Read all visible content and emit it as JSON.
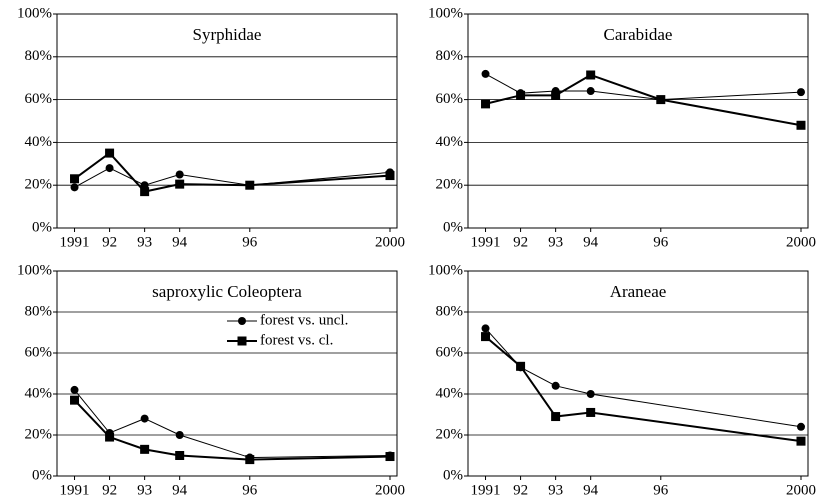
{
  "chart_data": [
    {
      "type": "line",
      "title": "Syrphidae",
      "xlim": [
        1990.5,
        2000.2
      ],
      "xticks": [
        1991,
        {
          "value": 1992,
          "label": "92"
        },
        {
          "value": 1993,
          "label": "93"
        },
        {
          "value": 1994,
          "label": "94"
        },
        {
          "value": 1996,
          "label": "96"
        },
        2000
      ],
      "ylim": [
        0,
        100
      ],
      "yticks": [
        {
          "value": 0,
          "label": "0%"
        },
        {
          "value": 20,
          "label": "20%"
        },
        {
          "value": 40,
          "label": "40%"
        },
        {
          "value": 60,
          "label": "60%"
        },
        {
          "value": 80,
          "label": "80%"
        },
        {
          "value": 100,
          "label": "100%"
        }
      ],
      "grid": true,
      "series": [
        {
          "color": "#000000",
          "marker": "circle",
          "line_width": 1,
          "x": [
            1991,
            1992,
            1993,
            1994,
            1996,
            2000
          ],
          "values": [
            19,
            28,
            20,
            25,
            20,
            26
          ]
        },
        {
          "color": "#000000",
          "marker": "square",
          "line_width": 2,
          "x": [
            1991,
            1992,
            1993,
            1994,
            1996,
            2000
          ],
          "values": [
            23,
            35,
            17,
            20.5,
            20,
            24.5
          ]
        }
      ]
    },
    {
      "type": "line",
      "title": "Carabidae",
      "xlim": [
        1990.5,
        2000.2
      ],
      "xticks": [
        1991,
        {
          "value": 1992,
          "label": "92"
        },
        {
          "value": 1993,
          "label": "93"
        },
        {
          "value": 1994,
          "label": "94"
        },
        {
          "value": 1996,
          "label": "96"
        },
        2000
      ],
      "ylim": [
        0,
        100
      ],
      "yticks": [
        {
          "value": 0,
          "label": "0%"
        },
        {
          "value": 20,
          "label": "20%"
        },
        {
          "value": 40,
          "label": "40%"
        },
        {
          "value": 60,
          "label": "60%"
        },
        {
          "value": 80,
          "label": "80%"
        },
        {
          "value": 100,
          "label": "100%"
        }
      ],
      "grid": true,
      "series": [
        {
          "color": "#000000",
          "marker": "circle",
          "line_width": 1,
          "x": [
            1991,
            1992,
            1993,
            1994,
            1996,
            2000
          ],
          "values": [
            72,
            63,
            64,
            64,
            60,
            63.5
          ]
        },
        {
          "color": "#000000",
          "marker": "square",
          "line_width": 2,
          "x": [
            1991,
            1992,
            1993,
            1994,
            1996,
            2000
          ],
          "values": [
            58,
            62,
            62,
            71.5,
            60,
            48
          ]
        }
      ]
    },
    {
      "type": "line",
      "title": "saproxylic Coleoptera",
      "xlim": [
        1990.5,
        2000.2
      ],
      "xticks": [
        1991,
        {
          "value": 1992,
          "label": "92"
        },
        {
          "value": 1993,
          "label": "93"
        },
        {
          "value": 1994,
          "label": "94"
        },
        {
          "value": 1996,
          "label": "96"
        },
        2000
      ],
      "ylim": [
        0,
        100
      ],
      "yticks": [
        {
          "value": 0,
          "label": "0%"
        },
        {
          "value": 20,
          "label": "20%"
        },
        {
          "value": 40,
          "label": "40%"
        },
        {
          "value": 60,
          "label": "60%"
        },
        {
          "value": 80,
          "label": "80%"
        },
        {
          "value": 100,
          "label": "100%"
        }
      ],
      "grid": true,
      "legend": "upper right",
      "series": [
        {
          "name": "forest vs. uncl.",
          "color": "#000000",
          "marker": "circle",
          "line_width": 1,
          "x": [
            1991,
            1992,
            1993,
            1994,
            1996,
            2000
          ],
          "values": [
            42,
            21,
            28,
            20,
            9,
            10
          ]
        },
        {
          "name": "forest vs. cl.",
          "color": "#000000",
          "marker": "square",
          "line_width": 2,
          "x": [
            1991,
            1992,
            1993,
            1994,
            1996,
            2000
          ],
          "values": [
            37,
            19,
            13,
            10,
            8,
            9.5
          ]
        }
      ]
    },
    {
      "type": "line",
      "title": "Araneae",
      "xlim": [
        1990.5,
        2000.2
      ],
      "xticks": [
        1991,
        {
          "value": 1992,
          "label": "92"
        },
        {
          "value": 1993,
          "label": "93"
        },
        {
          "value": 1994,
          "label": "94"
        },
        {
          "value": 1996,
          "label": "96"
        },
        2000
      ],
      "ylim": [
        0,
        100
      ],
      "yticks": [
        {
          "value": 0,
          "label": "0%"
        },
        {
          "value": 20,
          "label": "20%"
        },
        {
          "value": 40,
          "label": "40%"
        },
        {
          "value": 60,
          "label": "60%"
        },
        {
          "value": 80,
          "label": "80%"
        },
        {
          "value": 100,
          "label": "100%"
        }
      ],
      "grid": true,
      "series": [
        {
          "color": "#000000",
          "marker": "circle",
          "line_width": 1,
          "x": [
            1991,
            1992,
            1993,
            1994,
            2000
          ],
          "values": [
            72,
            53,
            44,
            40,
            24
          ]
        },
        {
          "color": "#000000",
          "marker": "square",
          "line_width": 2,
          "x": [
            1991,
            1992,
            1993,
            1994,
            2000
          ],
          "values": [
            68,
            53.5,
            29,
            31,
            17
          ]
        }
      ]
    }
  ]
}
